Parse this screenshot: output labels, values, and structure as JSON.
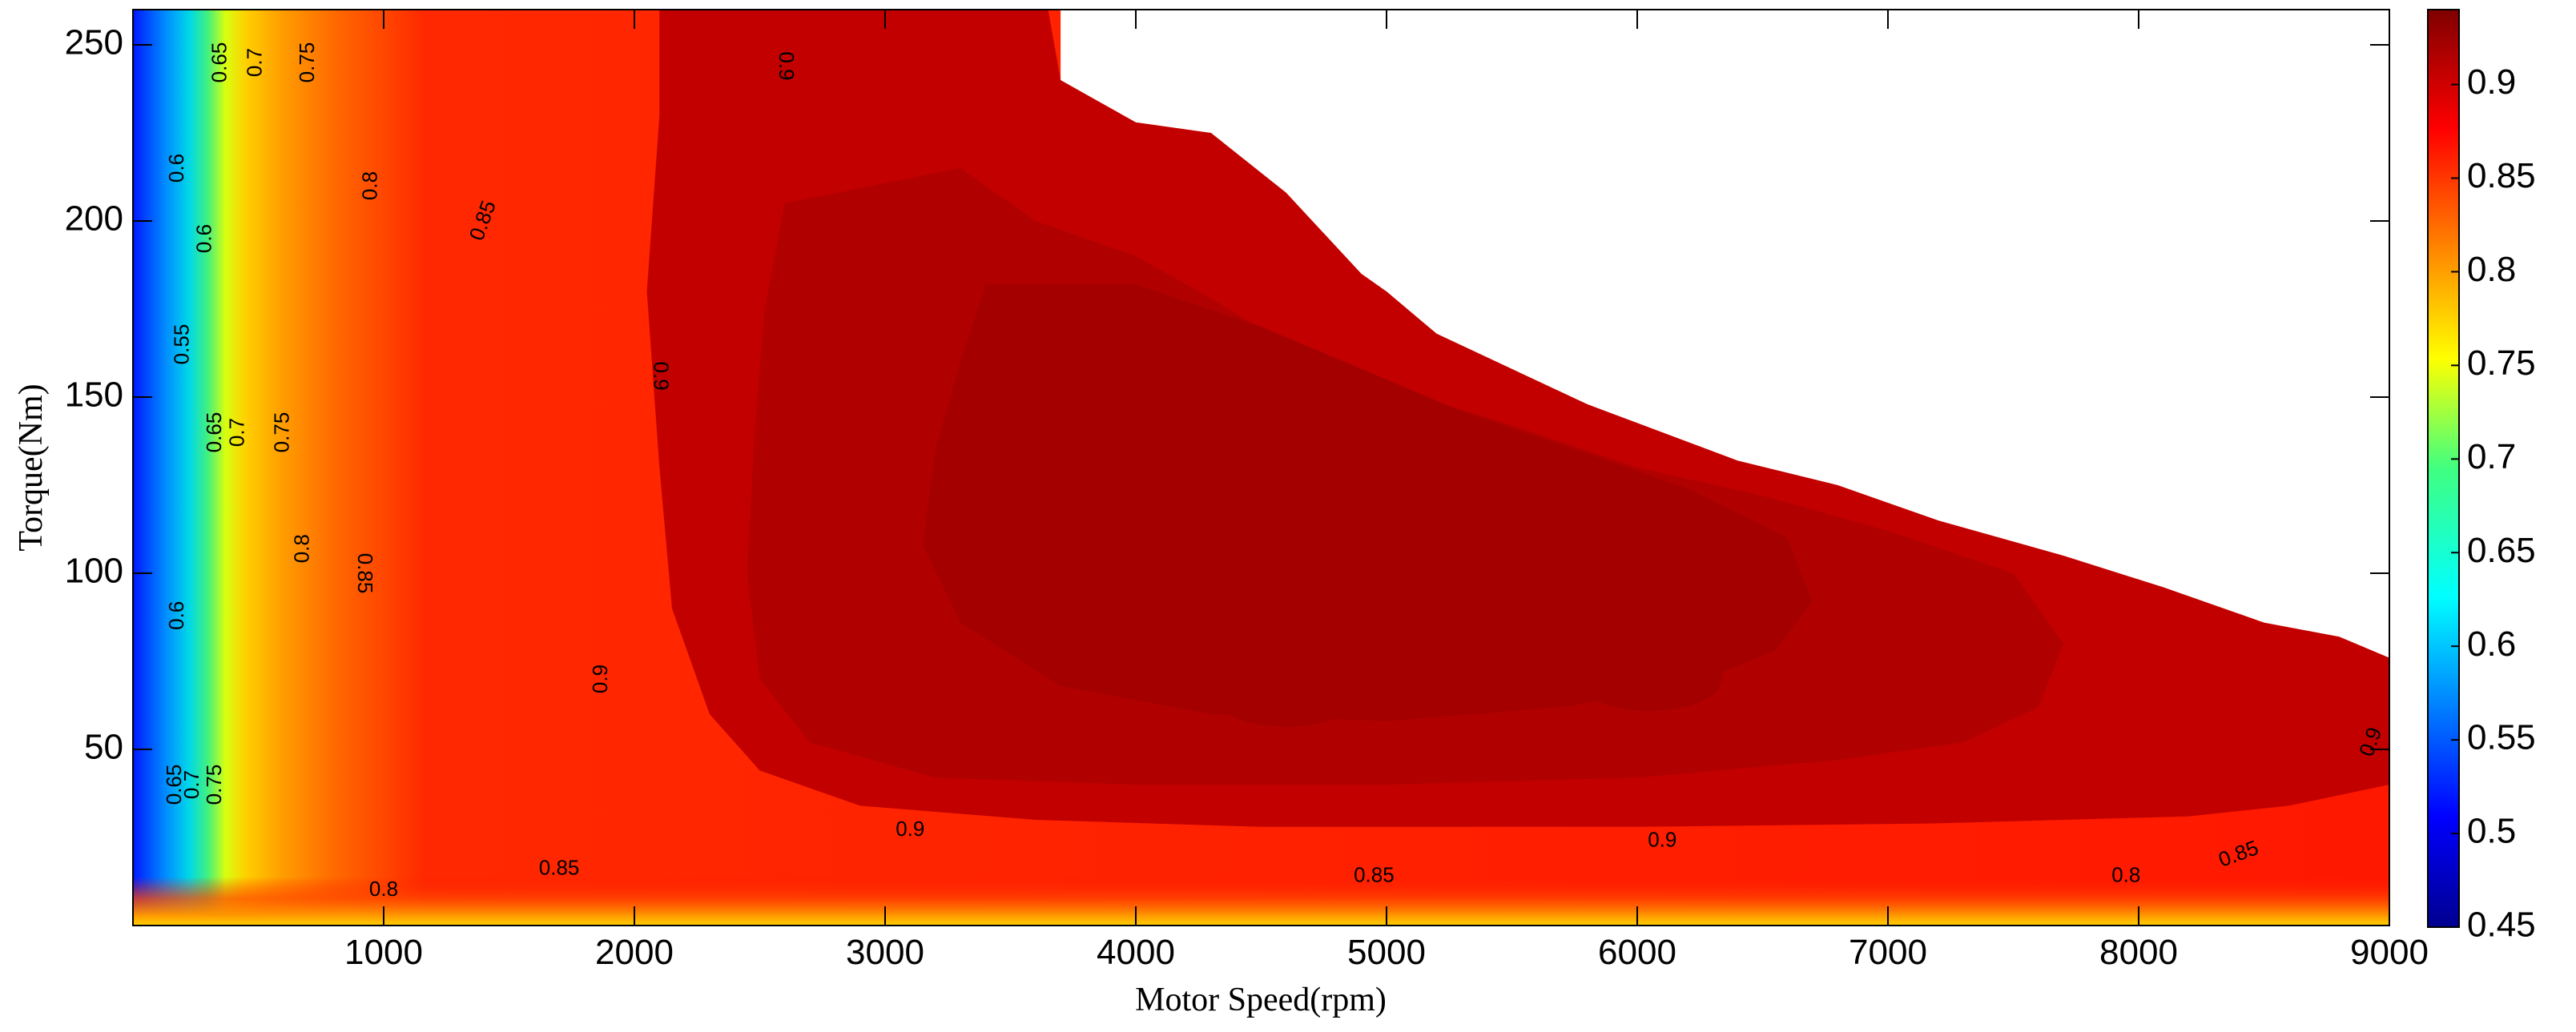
{
  "chart_data": {
    "type": "heatmap",
    "title": "",
    "xlabel": "Motor Speed(rpm)",
    "ylabel": "Torque(Nm)",
    "xlim": [
      0,
      9000
    ],
    "ylim": [
      0,
      260
    ],
    "xticks": [
      1000,
      2000,
      3000,
      4000,
      5000,
      6000,
      7000,
      8000,
      9000
    ],
    "yticks": [
      50,
      100,
      150,
      200,
      250
    ],
    "colorbar": {
      "range": [
        0.45,
        0.94
      ],
      "ticks": [
        "0.45",
        "0.5",
        "0.55",
        "0.6",
        "0.65",
        "0.7",
        "0.75",
        "0.8",
        "0.85",
        "0.9"
      ],
      "colormap": "jet"
    },
    "max_torque_boundary": [
      [
        3700,
        260
      ],
      [
        3700,
        240
      ],
      [
        4000,
        228
      ],
      [
        4300,
        225
      ],
      [
        4600,
        208
      ],
      [
        4900,
        185
      ],
      [
        5000,
        180
      ],
      [
        5200,
        168
      ],
      [
        5500,
        158
      ],
      [
        5800,
        148
      ],
      [
        6100,
        140
      ],
      [
        6400,
        132
      ],
      [
        6800,
        125
      ],
      [
        7200,
        115
      ],
      [
        7700,
        105
      ],
      [
        8100,
        96
      ],
      [
        8500,
        86
      ],
      [
        8800,
        82
      ],
      [
        9000,
        76
      ]
    ],
    "region_fill_colors": [
      {
        "efficiency": 0.93,
        "color": "#a50000"
      },
      {
        "efficiency": 0.92,
        "color": "#b00000"
      },
      {
        "efficiency": 0.91,
        "color": "#c20000"
      },
      {
        "efficiency": 0.9,
        "color": "#ff1500"
      }
    ],
    "contour_labels": [
      {
        "text": "0.65",
        "x": 350,
        "y": 245,
        "rotation": -90
      },
      {
        "text": "0.7",
        "x": 490,
        "y": 245,
        "rotation": -90
      },
      {
        "text": "0.75",
        "x": 700,
        "y": 245,
        "rotation": -90
      },
      {
        "text": "0.8",
        "x": 950,
        "y": 210,
        "rotation": -90
      },
      {
        "text": "0.85",
        "x": 1400,
        "y": 200,
        "rotation": -70
      },
      {
        "text": "0.9",
        "x": 2600,
        "y": 244,
        "rotation": 90
      },
      {
        "text": "0.6",
        "x": 180,
        "y": 215,
        "rotation": -90
      },
      {
        "text": "0.6",
        "x": 290,
        "y": 195,
        "rotation": -90
      },
      {
        "text": "0.55",
        "x": 200,
        "y": 165,
        "rotation": -90
      },
      {
        "text": "0.65",
        "x": 330,
        "y": 140,
        "rotation": -90
      },
      {
        "text": "0.7",
        "x": 420,
        "y": 140,
        "rotation": -90
      },
      {
        "text": "0.75",
        "x": 600,
        "y": 140,
        "rotation": -90
      },
      {
        "text": "0.9",
        "x": 2100,
        "y": 156,
        "rotation": 90
      },
      {
        "text": "0.8",
        "x": 680,
        "y": 107,
        "rotation": -90
      },
      {
        "text": "0.85",
        "x": 920,
        "y": 100,
        "rotation": 90
      },
      {
        "text": "0.6",
        "x": 180,
        "y": 88,
        "rotation": -90
      },
      {
        "text": "0.9",
        "x": 1870,
        "y": 70,
        "rotation": -90
      },
      {
        "text": "0.65",
        "x": 170,
        "y": 40,
        "rotation": -90
      },
      {
        "text": "0.7",
        "x": 240,
        "y": 40,
        "rotation": -90
      },
      {
        "text": "0.75",
        "x": 330,
        "y": 40,
        "rotation": -90
      },
      {
        "text": "0.9",
        "x": 3100,
        "y": 27,
        "rotation": 0
      },
      {
        "text": "0.85",
        "x": 1700,
        "y": 16,
        "rotation": 0
      },
      {
        "text": "0.8",
        "x": 1000,
        "y": 10,
        "rotation": 0
      },
      {
        "text": "0.85",
        "x": 4950,
        "y": 14,
        "rotation": 0
      },
      {
        "text": "0.9",
        "x": 6100,
        "y": 24,
        "rotation": 0
      },
      {
        "text": "0.8",
        "x": 7950,
        "y": 14,
        "rotation": 0
      },
      {
        "text": "0.85",
        "x": 8400,
        "y": 20,
        "rotation": -20
      },
      {
        "text": "0.9",
        "x": 8930,
        "y": 52,
        "rotation": -70
      }
    ]
  }
}
